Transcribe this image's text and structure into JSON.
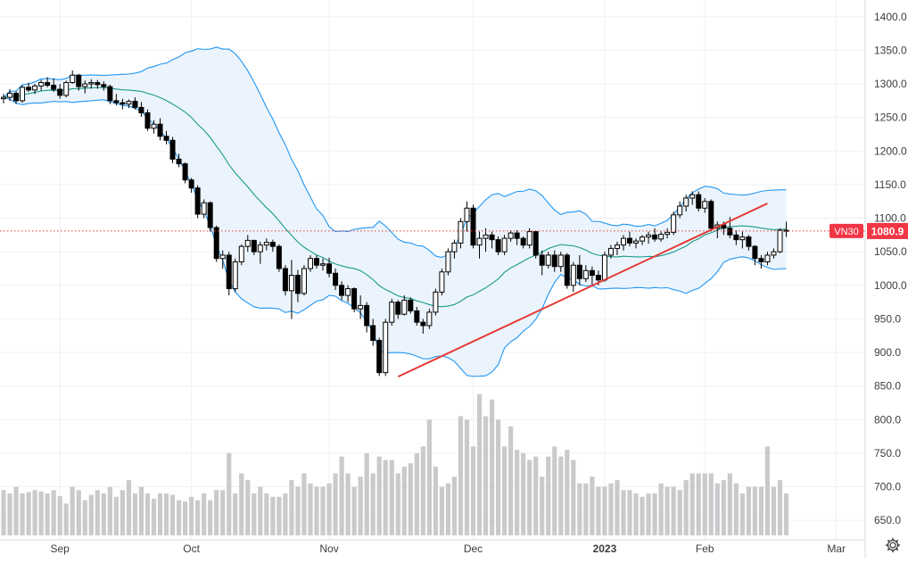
{
  "chart_data": {
    "type": "candlestick",
    "symbol": "VN30",
    "last_price_label": "1080.9",
    "last_price": 1080.9,
    "y_ticks": [
      "1400.0",
      "1350.0",
      "1300.0",
      "1250.0",
      "1200.0",
      "1150.0",
      "1100.0",
      "1050.0",
      "1000.0",
      "950.0",
      "900.0",
      "850.0",
      "800.0",
      "750.0",
      "700.0",
      "650.0"
    ],
    "y_tick_values": [
      1400,
      1350,
      1300,
      1250,
      1200,
      1150,
      1100,
      1050,
      1000,
      950,
      900,
      850,
      800,
      750,
      700,
      650
    ],
    "ylim": [
      621,
      1425
    ],
    "x_ticks": [
      {
        "label": "Sep",
        "index": 9
      },
      {
        "label": "Oct",
        "index": 30
      },
      {
        "label": "Nov",
        "index": 52
      },
      {
        "label": "Dec",
        "index": 75
      },
      {
        "label": "2023",
        "index": 96
      },
      {
        "label": "Feb",
        "index": 112
      },
      {
        "label": "Mar",
        "index": 133
      }
    ],
    "bars": 126,
    "grid": true,
    "candles": [
      [
        1278,
        1285,
        1271,
        1280
      ],
      [
        1280,
        1292,
        1275,
        1286
      ],
      [
        1286,
        1289,
        1270,
        1275
      ],
      [
        1275,
        1298,
        1272,
        1295
      ],
      [
        1295,
        1302,
        1288,
        1291
      ],
      [
        1291,
        1300,
        1285,
        1297
      ],
      [
        1297,
        1306,
        1290,
        1302
      ],
      [
        1302,
        1310,
        1295,
        1298
      ],
      [
        1298,
        1308,
        1288,
        1292
      ],
      [
        1292,
        1300,
        1278,
        1283
      ],
      [
        1283,
        1305,
        1280,
        1302
      ],
      [
        1302,
        1320,
        1300,
        1313
      ],
      [
        1313,
        1315,
        1290,
        1296
      ],
      [
        1296,
        1305,
        1286,
        1300
      ],
      [
        1300,
        1307,
        1293,
        1302
      ],
      [
        1302,
        1306,
        1293,
        1299
      ],
      [
        1299,
        1304,
        1290,
        1296
      ],
      [
        1296,
        1299,
        1270,
        1275
      ],
      [
        1275,
        1285,
        1268,
        1272
      ],
      [
        1272,
        1278,
        1262,
        1270
      ],
      [
        1270,
        1277,
        1264,
        1274
      ],
      [
        1274,
        1280,
        1262,
        1265
      ],
      [
        1265,
        1273,
        1251,
        1257
      ],
      [
        1257,
        1262,
        1230,
        1234
      ],
      [
        1234,
        1246,
        1226,
        1240
      ],
      [
        1240,
        1249,
        1216,
        1222
      ],
      [
        1222,
        1230,
        1210,
        1216
      ],
      [
        1216,
        1221,
        1182,
        1188
      ],
      [
        1188,
        1196,
        1176,
        1181
      ],
      [
        1181,
        1183,
        1152,
        1157
      ],
      [
        1157,
        1160,
        1138,
        1145
      ],
      [
        1145,
        1149,
        1100,
        1106
      ],
      [
        1106,
        1128,
        1100,
        1123
      ],
      [
        1123,
        1125,
        1080,
        1086
      ],
      [
        1086,
        1089,
        1035,
        1040
      ],
      [
        1040,
        1052,
        1025,
        1045
      ],
      [
        1045,
        1050,
        985,
        995
      ],
      [
        995,
        1040,
        990,
        1035
      ],
      [
        1035,
        1061,
        1030,
        1058
      ],
      [
        1058,
        1075,
        1050,
        1067
      ],
      [
        1067,
        1068,
        1045,
        1050
      ],
      [
        1050,
        1065,
        1032,
        1060
      ],
      [
        1060,
        1070,
        1052,
        1064
      ],
      [
        1064,
        1068,
        1050,
        1058
      ],
      [
        1058,
        1061,
        1020,
        1025
      ],
      [
        1025,
        1030,
        985,
        992
      ],
      [
        992,
        1038,
        950,
        1015
      ],
      [
        1015,
        1023,
        975,
        988
      ],
      [
        988,
        1030,
        985,
        1025
      ],
      [
        1025,
        1045,
        1020,
        1040
      ],
      [
        1040,
        1045,
        1025,
        1030
      ],
      [
        1030,
        1040,
        1022,
        1032
      ],
      [
        1032,
        1041,
        1012,
        1018
      ],
      [
        1018,
        1025,
        993,
        1000
      ],
      [
        1000,
        1006,
        978,
        985
      ],
      [
        985,
        1000,
        975,
        995
      ],
      [
        995,
        997,
        960,
        965
      ],
      [
        965,
        985,
        950,
        970
      ],
      [
        970,
        975,
        930,
        940
      ],
      [
        940,
        950,
        910,
        918
      ],
      [
        918,
        922,
        865,
        870
      ],
      [
        870,
        950,
        865,
        945
      ],
      [
        945,
        980,
        940,
        975
      ],
      [
        975,
        978,
        950,
        957
      ],
      [
        957,
        985,
        955,
        978
      ],
      [
        978,
        982,
        958,
        962
      ],
      [
        962,
        968,
        940,
        945
      ],
      [
        945,
        950,
        928,
        940
      ],
      [
        940,
        965,
        935,
        960
      ],
      [
        960,
        995,
        955,
        990
      ],
      [
        990,
        1025,
        985,
        1020
      ],
      [
        1020,
        1055,
        1015,
        1050
      ],
      [
        1050,
        1068,
        1040,
        1063
      ],
      [
        1063,
        1100,
        1055,
        1095
      ],
      [
        1095,
        1125,
        1080,
        1115
      ],
      [
        1115,
        1120,
        1055,
        1060
      ],
      [
        1060,
        1080,
        1040,
        1070
      ],
      [
        1070,
        1085,
        1050,
        1075
      ],
      [
        1075,
        1080,
        1055,
        1068
      ],
      [
        1068,
        1073,
        1045,
        1050
      ],
      [
        1050,
        1075,
        1045,
        1070
      ],
      [
        1070,
        1082,
        1065,
        1078
      ],
      [
        1078,
        1082,
        1060,
        1070
      ],
      [
        1070,
        1073,
        1055,
        1060
      ],
      [
        1060,
        1085,
        1055,
        1080
      ],
      [
        1080,
        1082,
        1040,
        1045
      ],
      [
        1045,
        1052,
        1015,
        1030
      ],
      [
        1030,
        1050,
        1025,
        1045
      ],
      [
        1045,
        1052,
        1020,
        1028
      ],
      [
        1028,
        1050,
        1020,
        1045
      ],
      [
        1045,
        1048,
        995,
        1000
      ],
      [
        1000,
        1035,
        990,
        1030
      ],
      [
        1030,
        1045,
        1000,
        1010
      ],
      [
        1010,
        1030,
        1005,
        1022
      ],
      [
        1022,
        1028,
        1000,
        1015
      ],
      [
        1015,
        1022,
        1000,
        1008
      ],
      [
        1008,
        1050,
        1005,
        1045
      ],
      [
        1045,
        1060,
        1040,
        1055
      ],
      [
        1055,
        1065,
        1045,
        1060
      ],
      [
        1060,
        1075,
        1052,
        1070
      ],
      [
        1070,
        1080,
        1058,
        1063
      ],
      [
        1063,
        1070,
        1055,
        1066
      ],
      [
        1066,
        1075,
        1060,
        1072
      ],
      [
        1072,
        1080,
        1062,
        1075
      ],
      [
        1075,
        1085,
        1065,
        1069
      ],
      [
        1069,
        1080,
        1065,
        1076
      ],
      [
        1076,
        1085,
        1070,
        1079
      ],
      [
        1079,
        1110,
        1075,
        1105
      ],
      [
        1105,
        1125,
        1100,
        1118
      ],
      [
        1118,
        1135,
        1110,
        1130
      ],
      [
        1130,
        1140,
        1120,
        1135
      ],
      [
        1135,
        1140,
        1110,
        1115
      ],
      [
        1115,
        1130,
        1108,
        1125
      ],
      [
        1125,
        1128,
        1080,
        1085
      ],
      [
        1085,
        1095,
        1070,
        1090
      ],
      [
        1090,
        1095,
        1075,
        1085
      ],
      [
        1085,
        1102,
        1070,
        1075
      ],
      [
        1075,
        1082,
        1060,
        1068
      ],
      [
        1068,
        1080,
        1055,
        1072
      ],
      [
        1072,
        1075,
        1052,
        1058
      ],
      [
        1058,
        1060,
        1030,
        1040
      ],
      [
        1040,
        1045,
        1025,
        1035
      ],
      [
        1035,
        1050,
        1030,
        1045
      ],
      [
        1045,
        1055,
        1040,
        1050
      ],
      [
        1050,
        1085,
        1048,
        1082
      ],
      [
        1082,
        1095,
        1072,
        1080.9
      ]
    ],
    "volume": [
      695,
      690,
      700,
      690,
      692,
      695,
      693,
      690,
      695,
      686,
      675,
      700,
      695,
      680,
      688,
      695,
      690,
      700,
      685,
      695,
      710,
      690,
      700,
      690,
      682,
      690,
      690,
      688,
      680,
      678,
      685,
      680,
      690,
      680,
      695,
      695,
      750,
      690,
      720,
      710,
      690,
      700,
      690,
      685,
      685,
      690,
      710,
      700,
      720,
      705,
      700,
      700,
      705,
      720,
      745,
      720,
      700,
      715,
      750,
      720,
      745,
      740,
      740,
      720,
      730,
      735,
      750,
      760,
      800,
      730,
      700,
      705,
      715,
      805,
      800,
      760,
      838,
      805,
      830,
      800,
      760,
      790,
      755,
      750,
      740,
      745,
      715,
      745,
      760,
      745,
      755,
      740,
      705,
      705,
      715,
      700,
      700,
      705,
      710,
      695,
      695,
      690,
      685,
      690,
      690,
      705,
      700,
      700,
      695,
      710,
      720,
      720,
      720,
      720,
      705,
      710,
      720,
      705,
      690,
      700,
      700,
      700,
      760,
      700,
      710,
      690
    ],
    "volume_scale": {
      "min": 621,
      "max": 845
    }
  },
  "colors": {
    "up_fill": "#ffffff",
    "down_fill": "#000000",
    "candle_stroke": "#000000",
    "volume": "#c9cacc",
    "band_line": "#2196f3",
    "band_fill": "#e8f2fc",
    "mid_line": "#1a9a8a",
    "trend_line": "#e53935",
    "price_tag": "#f23645",
    "grid": "#eef0f4",
    "axis_text": "#3d3d3d",
    "last_line": "#e53935"
  },
  "trendline": {
    "from_index": 63,
    "from_value": 864,
    "to_index": 122,
    "to_value": 1122
  },
  "settings_icon": "gear-icon"
}
